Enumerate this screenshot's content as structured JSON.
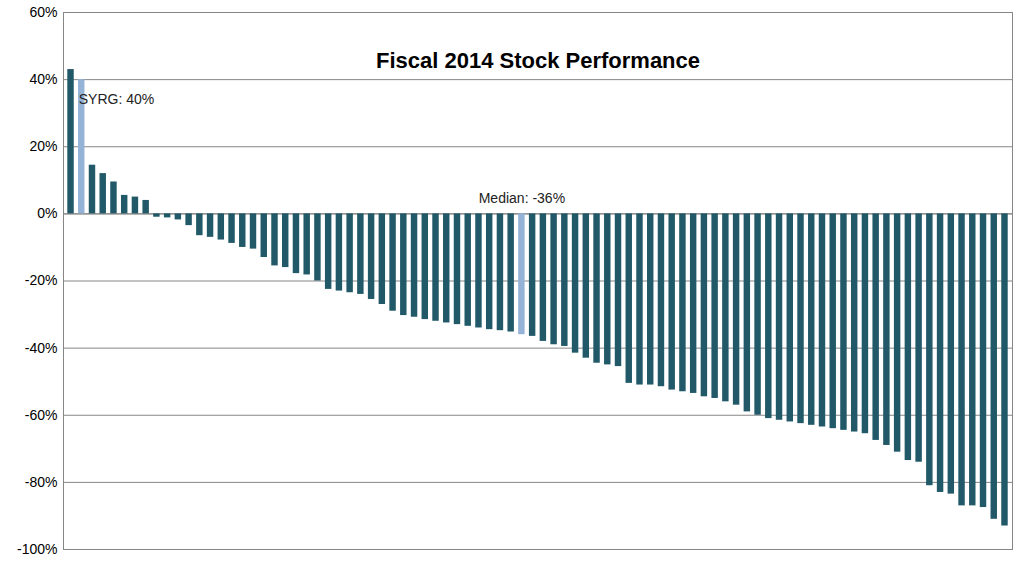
{
  "chart_data": {
    "type": "bar",
    "title": "Fiscal 2014 Stock Performance",
    "values": [
      43,
      40,
      14.5,
      12,
      9.5,
      5.5,
      5,
      4,
      -1,
      -1.2,
      -1.8,
      -3.5,
      -6.5,
      -7,
      -7.8,
      -8.8,
      -10,
      -10.5,
      -13,
      -15.5,
      -16,
      -17.8,
      -18.2,
      -20,
      -22.5,
      -23,
      -23.5,
      -24,
      -25.5,
      -27,
      -29,
      -30.3,
      -30.8,
      -31.5,
      -32,
      -32.5,
      -33,
      -33.5,
      -34,
      -34.5,
      -34.8,
      -35.2,
      -36,
      -36.5,
      -38,
      -39,
      -39.5,
      -41.5,
      -43,
      -44.5,
      -45,
      -45.5,
      -50.5,
      -51,
      -51,
      -51.5,
      -52.5,
      -53,
      -53.5,
      -54.5,
      -55,
      -56,
      -57,
      -59,
      -60,
      -61,
      -61.5,
      -62,
      -62.5,
      -63,
      -63.5,
      -64,
      -64.5,
      -65,
      -65.5,
      -67.5,
      -69,
      -71,
      -73.5,
      -74,
      -81,
      -83,
      -83.5,
      -87,
      -87,
      -87.5,
      -91,
      -93
    ],
    "colors": [
      "#215968",
      "#95b3d7",
      "#215968",
      "#215968",
      "#215968",
      "#215968",
      "#215968",
      "#215968",
      "#215968",
      "#215968",
      "#215968",
      "#215968",
      "#215968",
      "#215968",
      "#215968",
      "#215968",
      "#215968",
      "#215968",
      "#215968",
      "#215968",
      "#215968",
      "#215968",
      "#215968",
      "#215968",
      "#215968",
      "#215968",
      "#215968",
      "#215968",
      "#215968",
      "#215968",
      "#215968",
      "#215968",
      "#215968",
      "#215968",
      "#215968",
      "#215968",
      "#215968",
      "#215968",
      "#215968",
      "#215968",
      "#215968",
      "#215968",
      "#95b3d7",
      "#215968",
      "#215968",
      "#215968",
      "#215968",
      "#215968",
      "#215968",
      "#215968",
      "#215968",
      "#215968",
      "#215968",
      "#215968",
      "#215968",
      "#215968",
      "#215968",
      "#215968",
      "#215968",
      "#215968",
      "#215968",
      "#215968",
      "#215968",
      "#215968",
      "#215968",
      "#215968",
      "#215968",
      "#215968",
      "#215968",
      "#215968",
      "#215968",
      "#215968",
      "#215968",
      "#215968",
      "#215968",
      "#215968",
      "#215968",
      "#215968",
      "#215968",
      "#215968",
      "#215968",
      "#215968",
      "#215968",
      "#215968",
      "#215968",
      "#215968",
      "#215968",
      "#215968",
      "#215968"
    ],
    "annotations": [
      {
        "text": "SYRG: 40%",
        "index": 1,
        "y": 34
      },
      {
        "text": "Median: -36%",
        "index": 42,
        "y": 4.5
      }
    ],
    "ylim": [
      -100,
      60
    ],
    "yticks": [
      {
        "value": -100,
        "label": "-100%"
      },
      {
        "value": -80,
        "label": "-80%"
      },
      {
        "value": -60,
        "label": "-60%"
      },
      {
        "value": -40,
        "label": "-40%"
      },
      {
        "value": -20,
        "label": "-20%"
      },
      {
        "value": 0,
        "label": "0%"
      },
      {
        "value": 20,
        "label": "20%"
      },
      {
        "value": 40,
        "label": "40%"
      },
      {
        "value": 60,
        "label": "60%"
      }
    ],
    "grid": true,
    "tick_labels": "y"
  }
}
